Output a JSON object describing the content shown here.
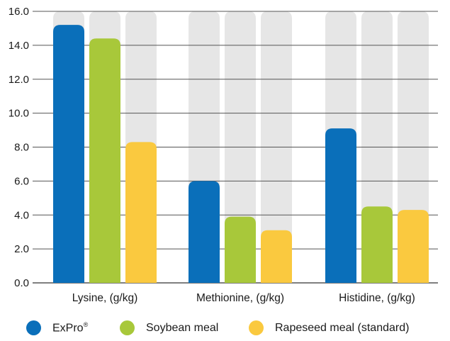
{
  "chart_data": {
    "type": "bar",
    "categories": [
      "Lysine, (g/kg)",
      "Methionine, (g/kg)",
      "Histidine, (g/kg)"
    ],
    "series": [
      {
        "name": "ExPro®",
        "values": [
          15.2,
          6.0,
          9.1
        ],
        "color": "#0a6fba"
      },
      {
        "name": "Soybean meal",
        "values": [
          14.4,
          3.9,
          4.5
        ],
        "color": "#a8c83a"
      },
      {
        "name": "Rapeseed meal (standard)",
        "values": [
          8.3,
          3.1,
          4.3
        ],
        "color": "#fac93f"
      }
    ],
    "y_ticks": [
      "0.0",
      "2.0",
      "4.0",
      "6.0",
      "8.0",
      "10.0",
      "12.0",
      "14.0",
      "16.0"
    ],
    "ylim": [
      0,
      16
    ],
    "background_bar_color": "#e6e6e6",
    "grid": true,
    "legend_position": "bottom"
  },
  "legend": {
    "items": [
      {
        "label": "ExPro",
        "superscript": "®",
        "color": "#0a6fba"
      },
      {
        "label": "Soybean meal",
        "color": "#a8c83a"
      },
      {
        "label": "Rapeseed meal (standard)",
        "color": "#fac93f"
      }
    ]
  }
}
